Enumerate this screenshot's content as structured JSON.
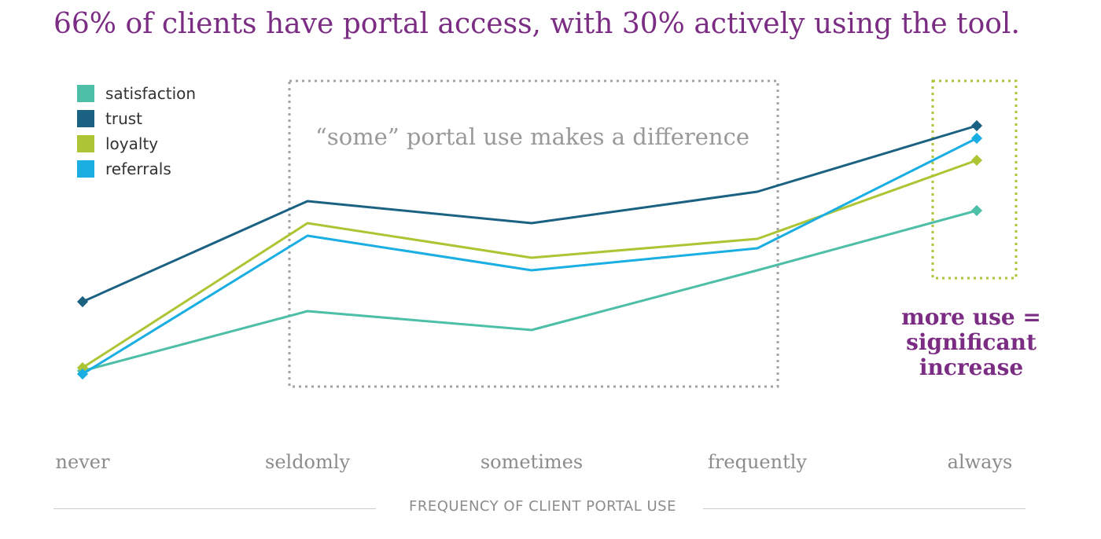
{
  "chart_data": {
    "type": "line",
    "title": "66% of clients have portal access, with 30% actively using the tool.",
    "xlabel": "FREQUENCY OF CLIENT PORTAL USE",
    "ylabel": "",
    "categories": [
      "never",
      "seldomly",
      "sometimes",
      "frequently",
      "always"
    ],
    "ylim": [
      0,
      100
    ],
    "grid": false,
    "legend_position": "top-left",
    "series": [
      {
        "name": "satisfaction",
        "color": "#4dbfa7",
        "values": [
          22,
          41,
          35,
          54,
          73
        ]
      },
      {
        "name": "trust",
        "color": "#1b6282",
        "values": [
          44,
          76,
          69,
          79,
          100
        ]
      },
      {
        "name": "loyalty",
        "color": "#adc534",
        "values": [
          23,
          69,
          58,
          64,
          89
        ]
      },
      {
        "name": "referrals",
        "color": "#1aaee3",
        "values": [
          21,
          65,
          54,
          61,
          96
        ]
      }
    ],
    "annotations": [
      {
        "text": "“some” portal use makes a difference",
        "color": "#999999"
      },
      {
        "text": "more use = significant increase",
        "color": "#7b2c83"
      }
    ]
  }
}
